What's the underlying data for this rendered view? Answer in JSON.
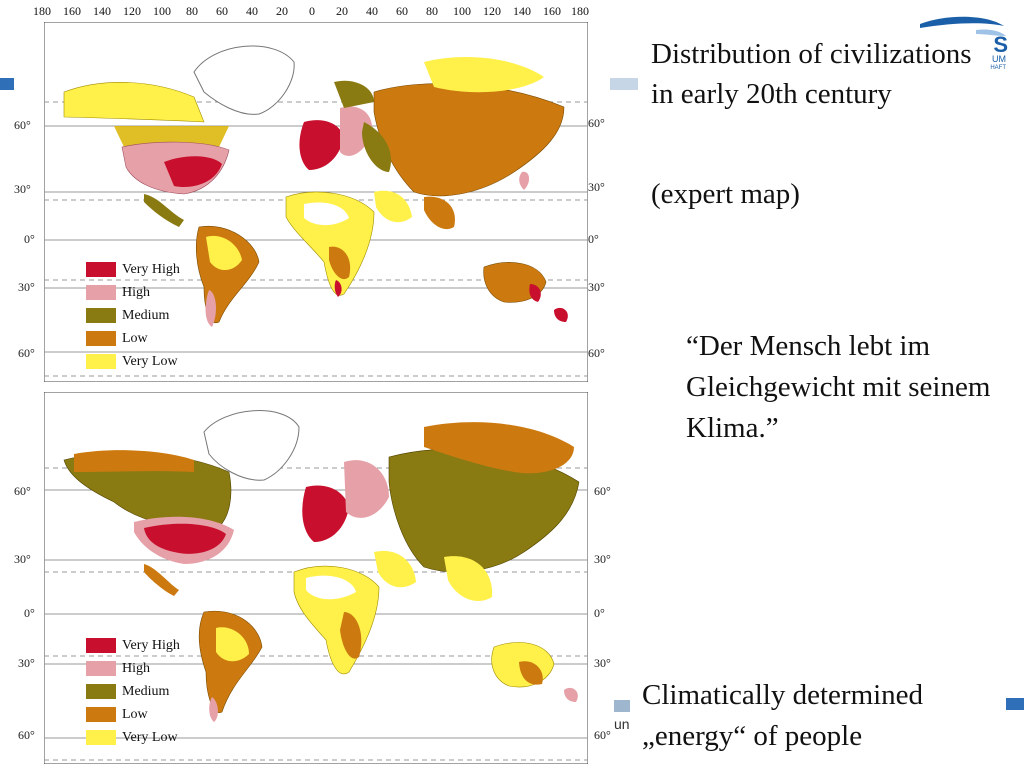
{
  "slide": {
    "title": "Distribution of civilizations in early 20th century",
    "subtitle": "(expert map)",
    "quote": "“Der Mensch lebt im Gleichgewicht mit seinem Klima.”",
    "caption": "Climatically determined „energy“ of people",
    "footer_word": "un"
  },
  "map": {
    "longitude_labels": [
      "180",
      "160",
      "140",
      "120",
      "100",
      "80",
      "60",
      "40",
      "20",
      "0",
      "20",
      "40",
      "60",
      "80",
      "100",
      "120",
      "140",
      "160",
      "180"
    ],
    "latitude_labels": [
      "60°",
      "30°",
      "0°",
      "30°",
      "60°"
    ],
    "legend": [
      {
        "label": "Very High",
        "color": "#c8102e"
      },
      {
        "label": "High",
        "color": "#e6a0a8"
      },
      {
        "label": "Medium",
        "color": "#8a7a12"
      },
      {
        "label": "Low",
        "color": "#cc7a10"
      },
      {
        "label": "Very Low",
        "color": "#fff04a"
      }
    ]
  },
  "logo": {
    "letters": "S",
    "line1": "UM",
    "line2": "HAFT",
    "accent": "#1a5fa8"
  }
}
